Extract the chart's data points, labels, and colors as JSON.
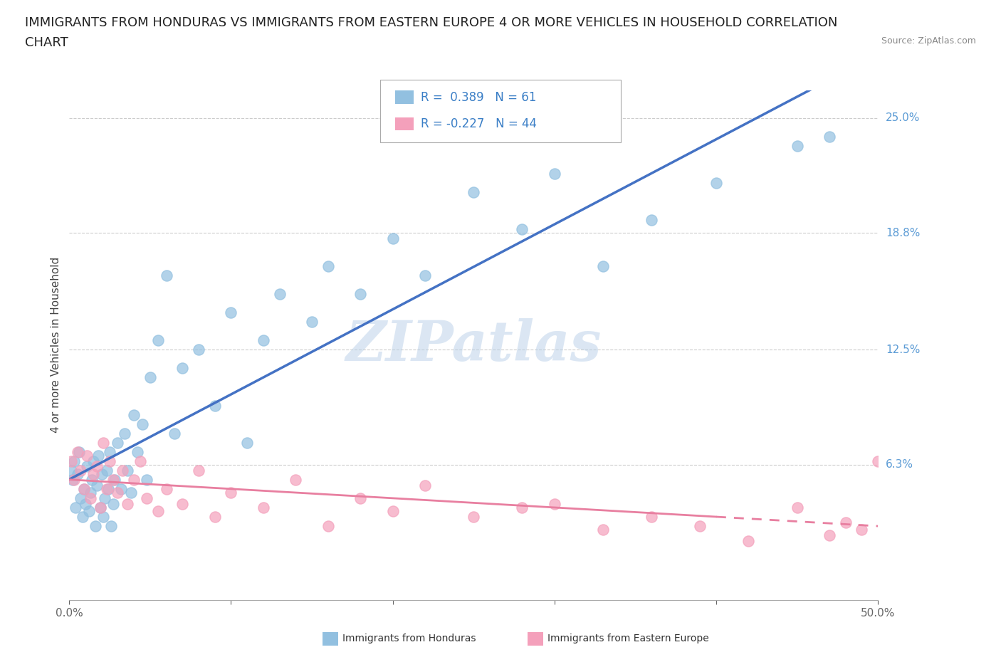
{
  "title_line1": "IMMIGRANTS FROM HONDURAS VS IMMIGRANTS FROM EASTERN EUROPE 4 OR MORE VEHICLES IN HOUSEHOLD CORRELATION",
  "title_line2": "CHART",
  "source": "Source: ZipAtlas.com",
  "ylabel": "4 or more Vehicles in Household",
  "legend_label1": "Immigrants from Honduras",
  "legend_label2": "Immigrants from Eastern Europe",
  "R1": 0.389,
  "N1": 61,
  "R2": -0.227,
  "N2": 44,
  "xlim": [
    0.0,
    0.5
  ],
  "ylim": [
    -0.01,
    0.265
  ],
  "ytick_vals": [
    0.063,
    0.125,
    0.188,
    0.25
  ],
  "ytick_labels": [
    "6.3%",
    "12.5%",
    "18.8%",
    "25.0%"
  ],
  "color_honduras": "#92c0e0",
  "color_eastern": "#f4a0bb",
  "line_color_honduras": "#4472c4",
  "line_color_eastern": "#e87fa0",
  "background_color": "#ffffff",
  "watermark": "ZIPatlas",
  "title_fontsize": 13,
  "axis_label_fontsize": 11,
  "tick_fontsize": 11,
  "honduras_x": [
    0.001,
    0.002,
    0.003,
    0.004,
    0.005,
    0.006,
    0.007,
    0.008,
    0.009,
    0.01,
    0.011,
    0.012,
    0.013,
    0.014,
    0.015,
    0.016,
    0.017,
    0.018,
    0.019,
    0.02,
    0.021,
    0.022,
    0.023,
    0.024,
    0.025,
    0.026,
    0.027,
    0.028,
    0.03,
    0.032,
    0.034,
    0.036,
    0.038,
    0.04,
    0.042,
    0.045,
    0.048,
    0.05,
    0.055,
    0.06,
    0.065,
    0.07,
    0.08,
    0.09,
    0.1,
    0.11,
    0.12,
    0.13,
    0.15,
    0.16,
    0.18,
    0.2,
    0.22,
    0.25,
    0.28,
    0.3,
    0.33,
    0.36,
    0.4,
    0.45,
    0.47
  ],
  "honduras_y": [
    0.06,
    0.055,
    0.065,
    0.04,
    0.058,
    0.07,
    0.045,
    0.035,
    0.05,
    0.042,
    0.062,
    0.038,
    0.048,
    0.055,
    0.065,
    0.03,
    0.052,
    0.068,
    0.04,
    0.058,
    0.035,
    0.045,
    0.06,
    0.05,
    0.07,
    0.03,
    0.042,
    0.055,
    0.075,
    0.05,
    0.08,
    0.06,
    0.048,
    0.09,
    0.07,
    0.085,
    0.055,
    0.11,
    0.13,
    0.165,
    0.08,
    0.115,
    0.125,
    0.095,
    0.145,
    0.075,
    0.13,
    0.155,
    0.14,
    0.17,
    0.155,
    0.185,
    0.165,
    0.21,
    0.19,
    0.22,
    0.17,
    0.195,
    0.215,
    0.235,
    0.24
  ],
  "eastern_x": [
    0.001,
    0.003,
    0.005,
    0.007,
    0.009,
    0.011,
    0.013,
    0.015,
    0.017,
    0.019,
    0.021,
    0.023,
    0.025,
    0.027,
    0.03,
    0.033,
    0.036,
    0.04,
    0.044,
    0.048,
    0.055,
    0.06,
    0.07,
    0.08,
    0.09,
    0.1,
    0.12,
    0.14,
    0.16,
    0.18,
    0.2,
    0.22,
    0.25,
    0.28,
    0.3,
    0.33,
    0.36,
    0.39,
    0.42,
    0.45,
    0.47,
    0.48,
    0.49,
    0.5
  ],
  "eastern_y": [
    0.065,
    0.055,
    0.07,
    0.06,
    0.05,
    0.068,
    0.045,
    0.058,
    0.062,
    0.04,
    0.075,
    0.05,
    0.065,
    0.055,
    0.048,
    0.06,
    0.042,
    0.055,
    0.065,
    0.045,
    0.038,
    0.05,
    0.042,
    0.06,
    0.035,
    0.048,
    0.04,
    0.055,
    0.03,
    0.045,
    0.038,
    0.052,
    0.035,
    0.04,
    0.042,
    0.028,
    0.035,
    0.03,
    0.022,
    0.04,
    0.025,
    0.032,
    0.028,
    0.065
  ]
}
